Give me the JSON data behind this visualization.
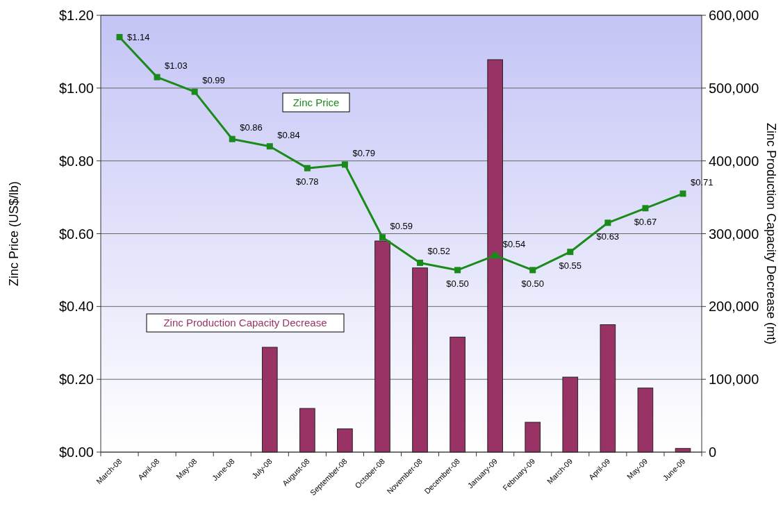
{
  "chart_data": {
    "type": "bar",
    "xlabel": null,
    "ylabel": "Zinc Price (US$/lb)",
    "y2label": "Zinc Production Capacity Decrease (mt)",
    "categories": [
      "March-08",
      "April-08",
      "May-08",
      "June-08",
      "July-08",
      "August-08",
      "September-08",
      "October-08",
      "November-08",
      "December-08",
      "January-09",
      "February-09",
      "March-09",
      "April-09",
      "May-09",
      "June-09"
    ],
    "series": [
      {
        "name": "Zinc Production Capacity Decrease",
        "axis": "y2",
        "color": "#993366",
        "values": [
          null,
          null,
          null,
          null,
          144000,
          60000,
          32000,
          290000,
          253000,
          158000,
          539000,
          41000,
          103000,
          175000,
          88000,
          5000
        ]
      },
      {
        "name": "Zinc Price",
        "type": "line",
        "axis": "y",
        "color": "#1a8a1a",
        "marker": "square",
        "values": [
          1.14,
          1.03,
          0.99,
          0.86,
          0.84,
          0.78,
          0.79,
          0.59,
          0.52,
          0.5,
          0.54,
          0.5,
          0.55,
          0.63,
          0.67,
          0.71
        ],
        "value_labels": [
          "$1.14",
          "$1.03",
          "$0.99",
          "$0.86",
          "$0.84",
          "$0.78",
          "$0.79",
          "$0.59",
          "$0.52",
          "$0.50",
          "$0.54",
          "$0.50",
          "$0.55",
          "$0.63",
          "$0.67",
          "$0.71"
        ]
      }
    ],
    "ylim": [
      0,
      1.2
    ],
    "yticks": [
      {
        "value": 0,
        "label": "$0.00"
      },
      {
        "value": 0.2,
        "label": "$0.20"
      },
      {
        "value": 0.4,
        "label": "$0.40"
      },
      {
        "value": 0.6,
        "label": "$0.60"
      },
      {
        "value": 0.8,
        "label": "$0.80"
      },
      {
        "value": 1,
        "label": "$1.00"
      },
      {
        "value": 1.2,
        "label": "$1.20"
      }
    ],
    "y2lim": [
      0,
      600000
    ],
    "y2ticks": [
      0,
      {
        "value": 100000,
        "label": "100,000"
      },
      {
        "value": 200000,
        "label": "200,000"
      },
      {
        "value": 300000,
        "label": "300,000"
      },
      {
        "value": 400000,
        "label": "400,000"
      },
      {
        "value": 500000,
        "label": "500,000"
      },
      {
        "value": 600000,
        "label": "600,000"
      }
    ],
    "grid": "y",
    "legend": false
  }
}
